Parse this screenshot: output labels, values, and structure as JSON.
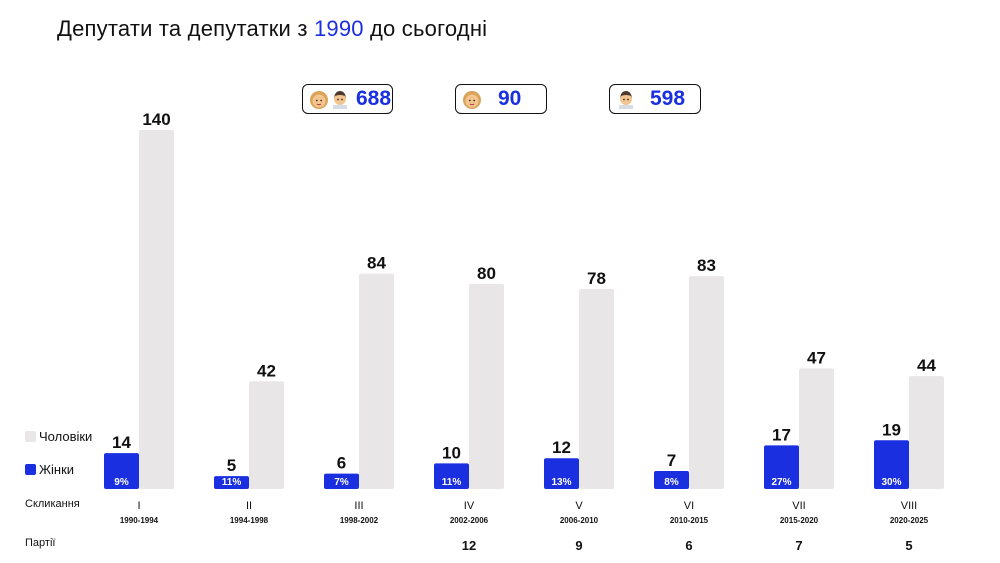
{
  "title": {
    "prefix": "Депутати та депутатки з ",
    "year": "1990",
    "suffix": " до сьогодні"
  },
  "stats": [
    {
      "icons": [
        "woman-face-icon",
        "man-face-icon"
      ],
      "value": "688"
    },
    {
      "icons": [
        "woman-face-icon"
      ],
      "value": "90"
    },
    {
      "icons": [
        "man-face-icon"
      ],
      "value": "598"
    }
  ],
  "legend": {
    "men": "Чоловіки",
    "women": "Жінки"
  },
  "row_labels": {
    "convocation": "Скликання",
    "parties": "Партії"
  },
  "colors": {
    "women": "#1a2fe0",
    "men": "#e8e6e6",
    "accent": "#1a2fe0",
    "text": "#111111"
  },
  "chart_data": {
    "type": "bar",
    "ylim": [
      0,
      140
    ],
    "categories": [
      "I",
      "II",
      "III",
      "IV",
      "V",
      "VI",
      "VII",
      "VIII"
    ],
    "periods": [
      "1990-1994",
      "1994-1998",
      "1998-2002",
      "2002-2006",
      "2006-2010",
      "2010-2015",
      "2015-2020",
      "2020-2025"
    ],
    "series": [
      {
        "name": "Жінки",
        "values": [
          14,
          5,
          6,
          10,
          12,
          7,
          17,
          19
        ],
        "percent_labels": [
          "9%",
          "11%",
          "7%",
          "11%",
          "13%",
          "8%",
          "27%",
          "30%"
        ]
      },
      {
        "name": "Чоловіки",
        "values": [
          140,
          42,
          84,
          80,
          78,
          83,
          47,
          44
        ]
      }
    ],
    "parties": [
      "",
      "",
      "",
      "12",
      "9",
      "6",
      "7",
      "5"
    ]
  }
}
